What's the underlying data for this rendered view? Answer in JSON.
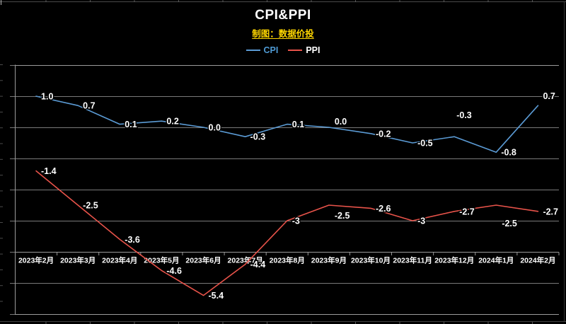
{
  "header": {
    "title": "CPI&PPI",
    "subtitle": "制图：数据价投",
    "subtitle_color": "#FFD700",
    "title_color": "#FFFFFF"
  },
  "legend": {
    "items": [
      {
        "label": "CPI",
        "swatch_color": "#5B9BD5",
        "text_color": "#4F9BD5"
      },
      {
        "label": "PPI",
        "swatch_color": "#E8534A",
        "text_color": "#FFFFFF"
      }
    ]
  },
  "chart_data": {
    "type": "line",
    "title": "CPI&PPI",
    "subtitle": "制图：数据价投",
    "categories": [
      "2023年2月",
      "2023年3月",
      "2023年4月",
      "2023年5月",
      "2023年6月",
      "2023年7月",
      "2023年8月",
      "2023年9月",
      "2023年10月",
      "2023年11月",
      "2023年12月",
      "2024年1月",
      "2024年2月"
    ],
    "series": [
      {
        "name": "CPI",
        "color": "#5B9BD5",
        "values": [
          1.0,
          0.7,
          0.1,
          0.2,
          0.0,
          -0.3,
          0.1,
          0.0,
          -0.2,
          -0.5,
          -0.3,
          -0.8,
          0.7
        ],
        "labels": [
          "1.0",
          "0.7",
          "0.1",
          "0.2",
          "0.0",
          "-0.3",
          "0.1",
          "0.0",
          "-0.2",
          "-0.5",
          "-0.3",
          "-0.8",
          "0.7"
        ]
      },
      {
        "name": "PPI",
        "color": "#E8534A",
        "values": [
          -1.4,
          -2.5,
          -3.6,
          -4.6,
          -5.4,
          -4.4,
          -3,
          -2.5,
          -2.6,
          -3,
          -2.7,
          -2.5,
          -2.7
        ],
        "labels": [
          "-1.4",
          "-2.5",
          "-3.6",
          "-4.6",
          "-5.4",
          "-4.4",
          "-3",
          "-2.5",
          "-2.6",
          "-3",
          "-2.7",
          "-2.5",
          "-2.7"
        ]
      }
    ],
    "xlabel": "",
    "ylabel": "",
    "ylim": [
      -6,
      2
    ],
    "grid_step": 1,
    "grid": true,
    "axis_cross_value": -4,
    "legend_position": "top-center",
    "data_labels": true,
    "label_overrides": {
      "CPI.7": {
        "dx": 8,
        "dy": -4
      },
      "CPI.10": {
        "dx": 3,
        "dy": -26
      },
      "CPI.12": {
        "dx": 7,
        "dy": -9
      },
      "PPI.7": {
        "dx": 8,
        "dy": 19
      },
      "PPI.11": {
        "dx": 8,
        "dy": 30
      }
    },
    "style": {
      "background": "#000000",
      "grid_color": "#7a7a7a",
      "axis_color": "#9b9b9b",
      "data_label_color": "#FFFFFF",
      "x_label_color": "#FFFFFF"
    }
  }
}
